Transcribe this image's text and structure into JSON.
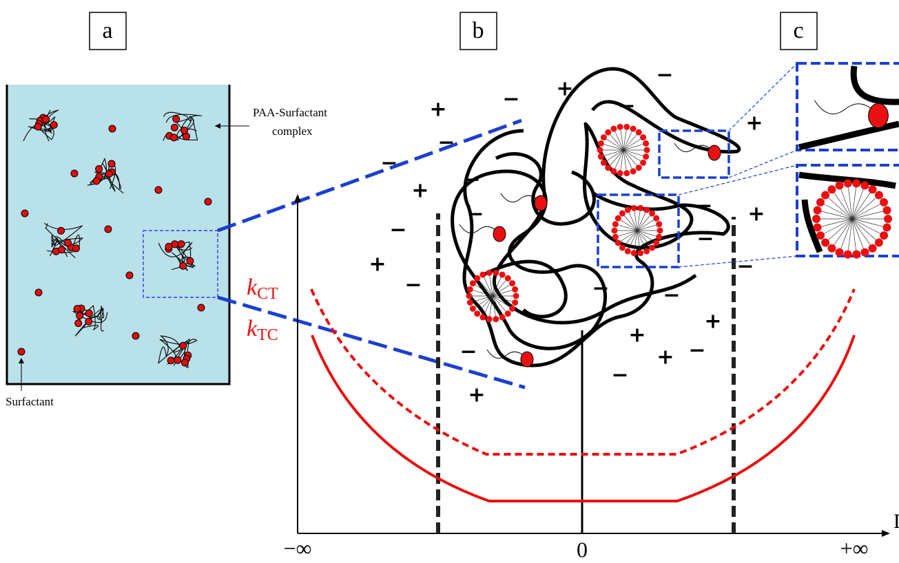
{
  "panels": {
    "a": {
      "label": "a",
      "complex_label": [
        "PAA-Surfactant",
        "complex"
      ],
      "surfactant_label": "Surfactant"
    },
    "b": {
      "label": "b",
      "curves": [
        {
          "symbol": "k",
          "subscript": "CT"
        },
        {
          "symbol": "k",
          "subscript": "TC"
        }
      ],
      "axis": {
        "x_label": "D",
        "left": "−∞",
        "center": "0",
        "right": "+∞"
      },
      "charges": [
        "+",
        "−",
        "+",
        "−",
        "−",
        "+",
        "−",
        "−",
        "−",
        "+",
        "+",
        "−",
        "−",
        "−",
        "−",
        "+",
        "−",
        "−",
        "−",
        "+",
        "−",
        "+",
        "−",
        "−",
        "+",
        "+",
        "−"
      ]
    },
    "c": {
      "label": "c"
    }
  }
}
